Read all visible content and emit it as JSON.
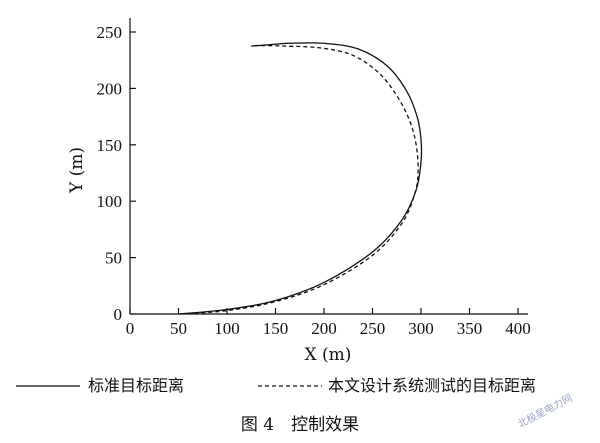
{
  "chart_data": {
    "type": "line",
    "title": "",
    "xlabel": "X (m)",
    "ylabel": "Y (m)",
    "xlim": [
      0,
      400
    ],
    "ylim": [
      0,
      250
    ],
    "xticks": [
      0,
      50,
      100,
      150,
      200,
      250,
      300,
      350,
      400
    ],
    "yticks": [
      0,
      50,
      100,
      150,
      200,
      250
    ],
    "grid": false,
    "legend_position": "bottom",
    "series": [
      {
        "name": "标准目标距离",
        "style": "solid",
        "points": [
          [
            50,
            0
          ],
          [
            100,
            4
          ],
          [
            150,
            12
          ],
          [
            200,
            28
          ],
          [
            250,
            55
          ],
          [
            280,
            83
          ],
          [
            295,
            110
          ],
          [
            300,
            135
          ],
          [
            300,
            155
          ],
          [
            296,
            175
          ],
          [
            285,
            198
          ],
          [
            265,
            220
          ],
          [
            235,
            235
          ],
          [
            200,
            240
          ],
          [
            165,
            240
          ],
          [
            140,
            238.5
          ],
          [
            125,
            237.5
          ]
        ]
      },
      {
        "name": "本文设计系统测试的目标距离",
        "style": "dashed",
        "points": [
          [
            52,
            0
          ],
          [
            100,
            3
          ],
          [
            150,
            11
          ],
          [
            200,
            26
          ],
          [
            250,
            52
          ],
          [
            280,
            80
          ],
          [
            293,
            105
          ],
          [
            297,
            125
          ],
          [
            295,
            150
          ],
          [
            288,
            172
          ],
          [
            274,
            195
          ],
          [
            255,
            215
          ],
          [
            228,
            230
          ],
          [
            195,
            236
          ],
          [
            160,
            237.5
          ],
          [
            135,
            238
          ],
          [
            126,
            237.5
          ]
        ]
      }
    ]
  },
  "caption": "图 4　控制效果",
  "watermark": "北极星电力网"
}
